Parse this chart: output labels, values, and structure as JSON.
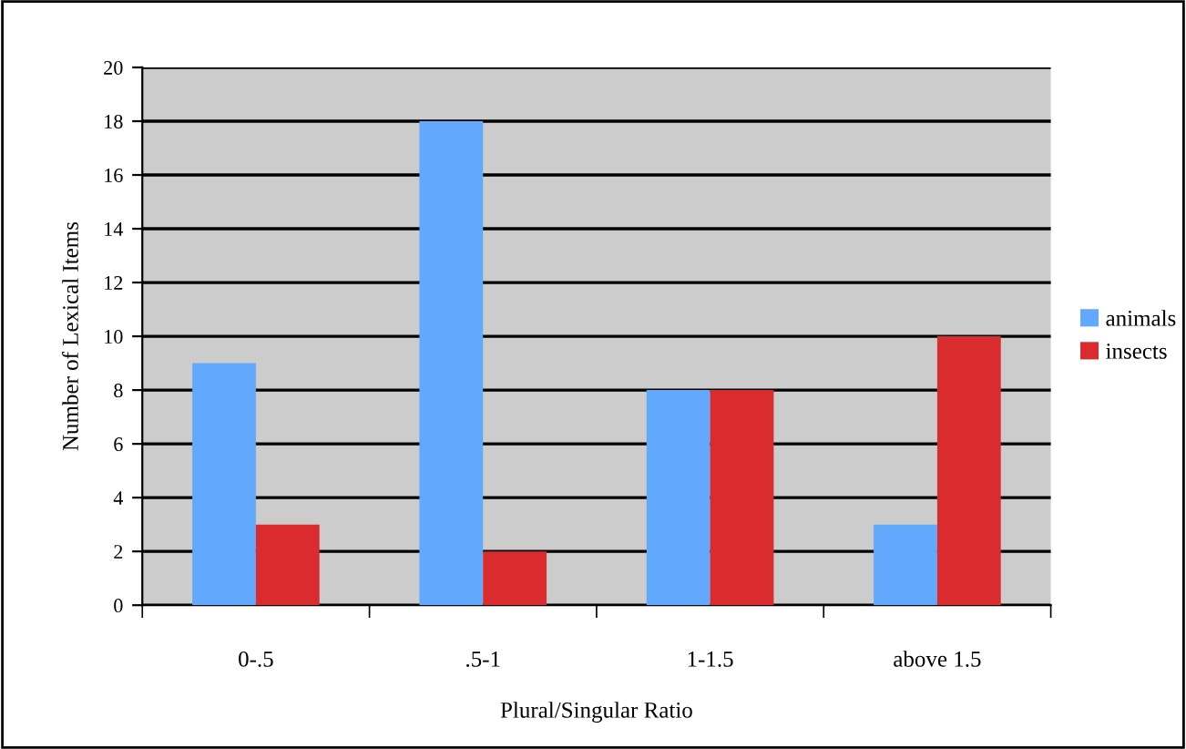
{
  "chart_data": {
    "type": "bar",
    "xlabel": "Plural/Singular Ratio",
    "ylabel": "Number of Lexical Items",
    "categories": [
      "0-.5",
      ".5-1",
      "1-1.5",
      "above 1.5"
    ],
    "series": [
      {
        "name": "animals",
        "color": "#62a8fc",
        "values": [
          9,
          18,
          8,
          3
        ]
      },
      {
        "name": "insects",
        "color": "#da2b2f",
        "values": [
          3,
          2,
          8,
          10
        ]
      }
    ],
    "ylim": [
      0,
      20
    ],
    "yticks": [
      0,
      2,
      4,
      6,
      8,
      10,
      12,
      14,
      16,
      18,
      20
    ],
    "grid": "y",
    "legend": "right"
  }
}
